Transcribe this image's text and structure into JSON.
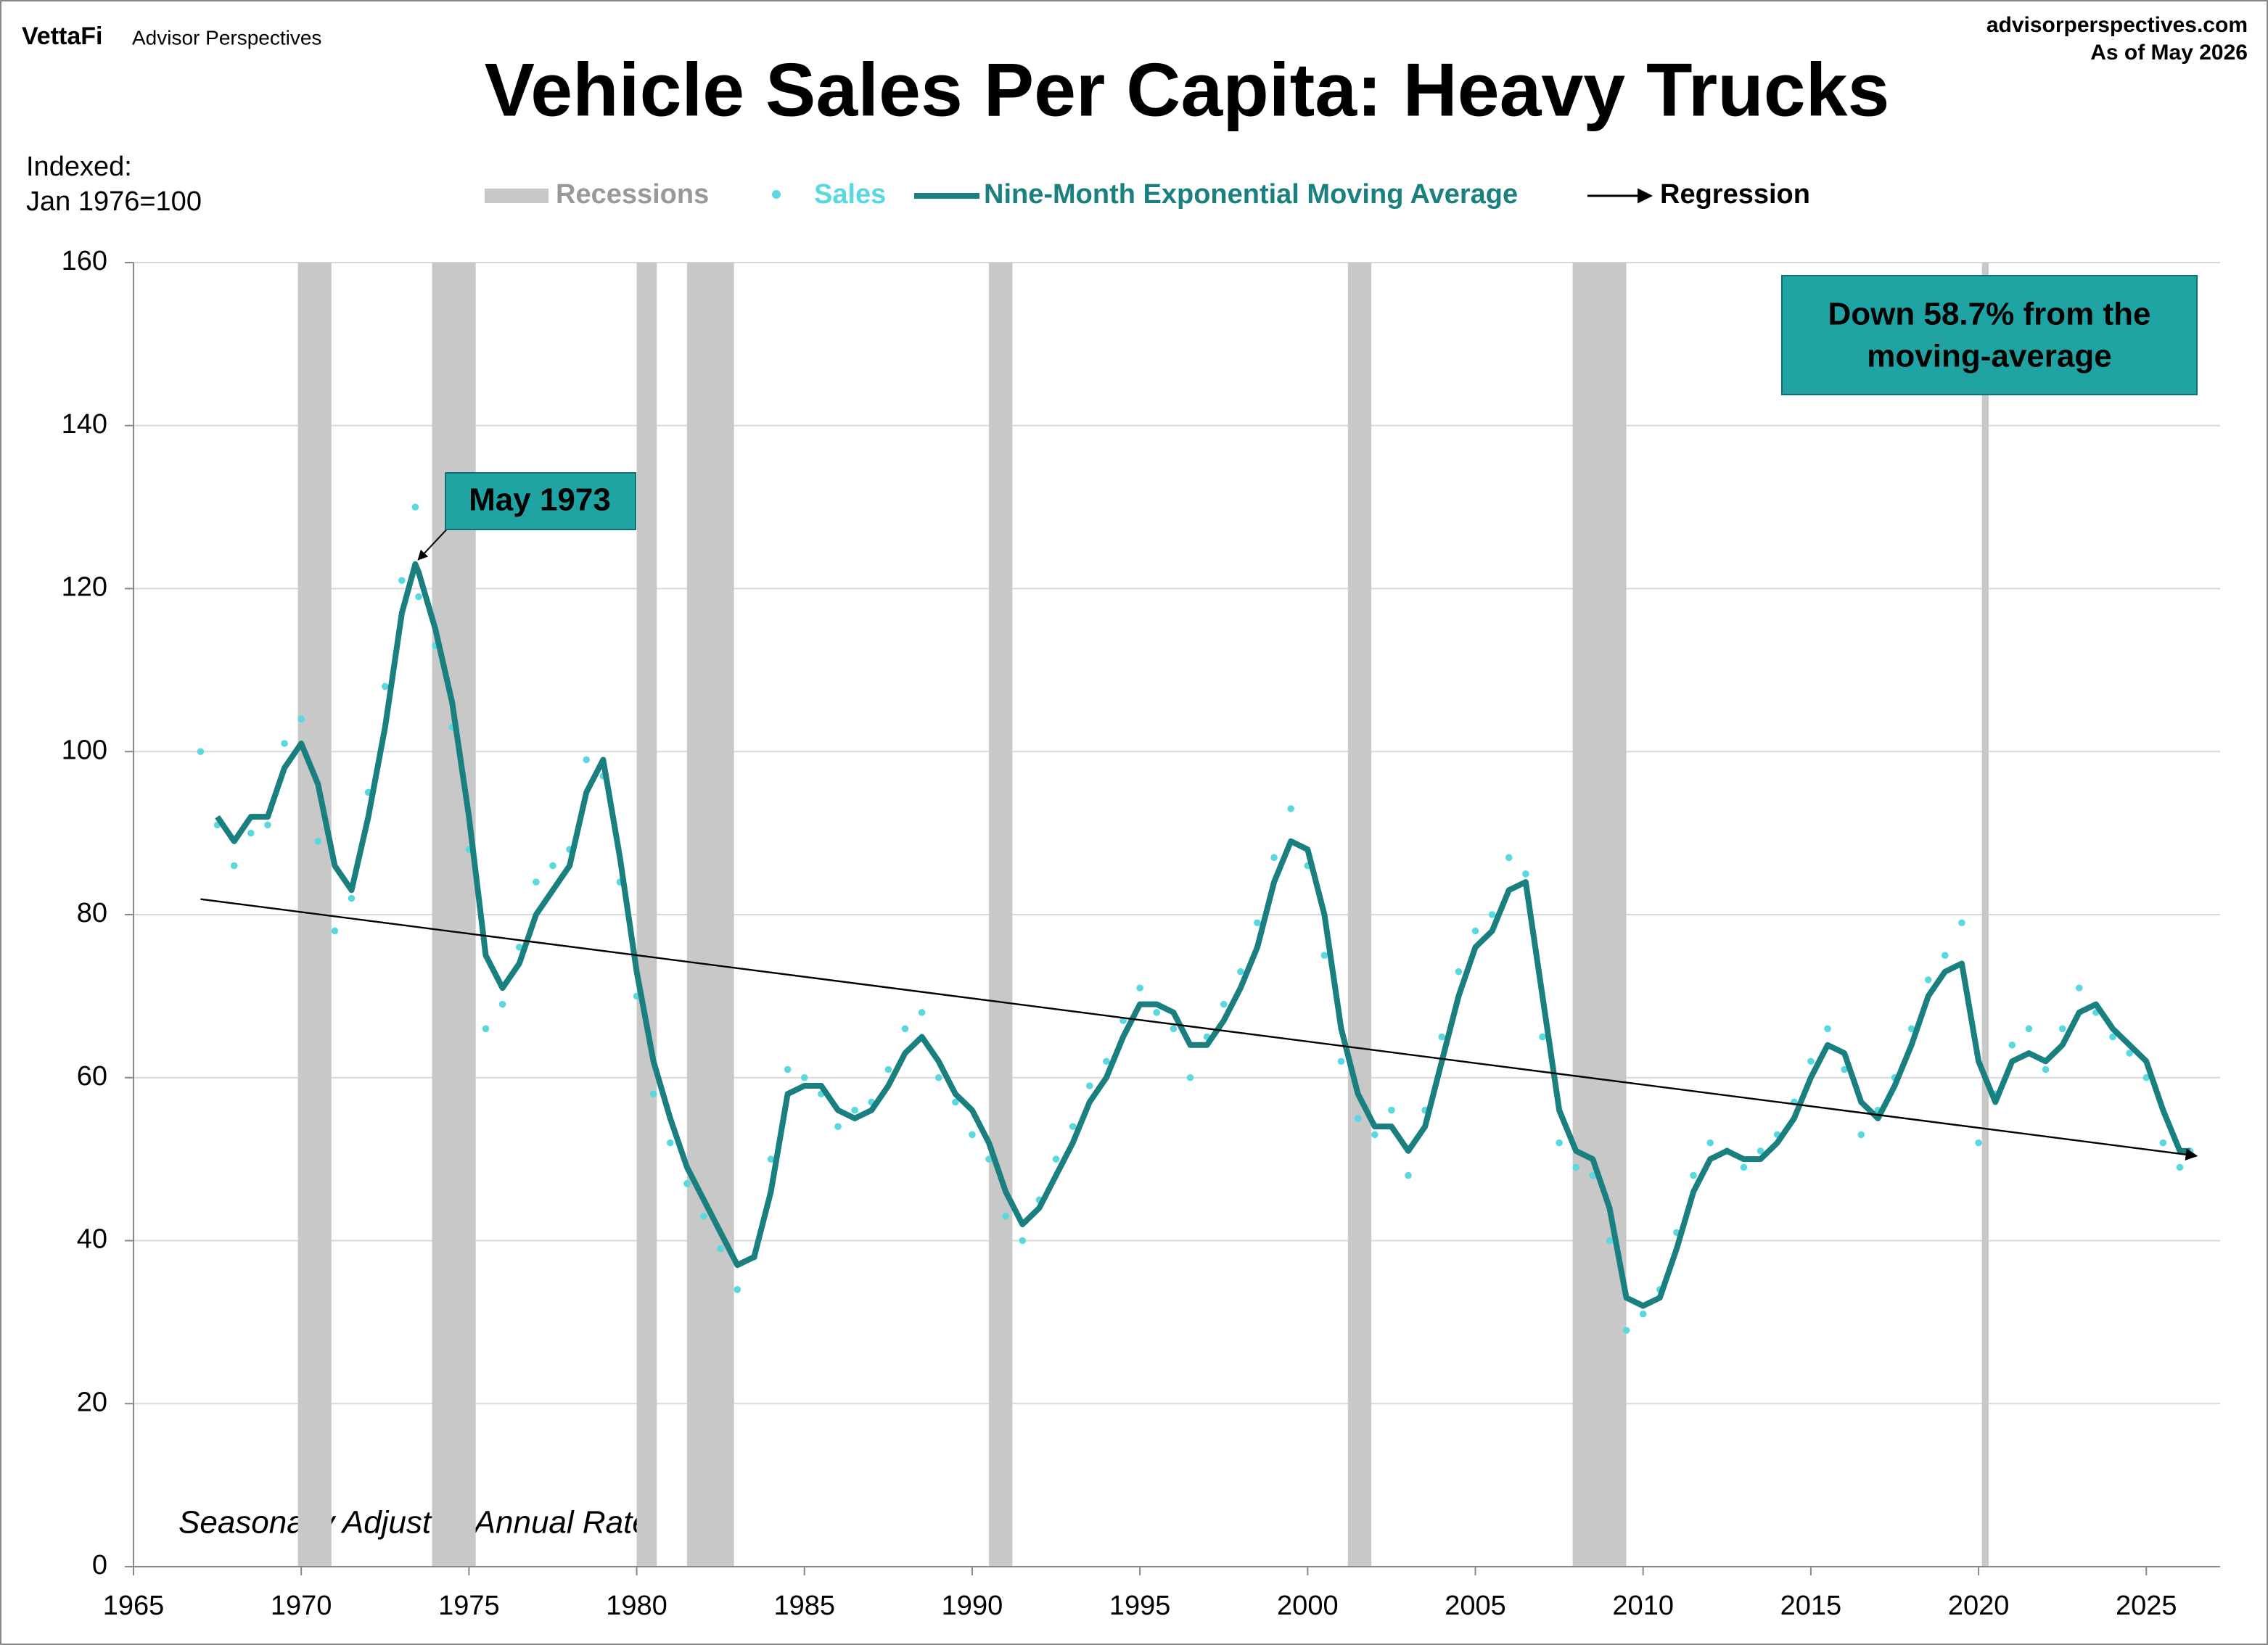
{
  "chart_data": {
    "type": "line",
    "brand": "VettaFi",
    "publisher": "Advisor Perspectives",
    "source": "advisorperspectives.com",
    "date_note": "As of May 2026",
    "title": "Vehicle Sales Per Capita: Heavy Trucks",
    "y_label": [
      "Indexed:",
      "Jan 1976=100"
    ],
    "note": "Seasonally Adjusted Annual Rate",
    "annotation": "May 1973",
    "callout": [
      "Down 58.7% from the",
      "moving-average"
    ],
    "xlim": [
      1965,
      2027.2
    ],
    "xticks": [
      1965,
      1970,
      1975,
      1980,
      1985,
      1990,
      1995,
      2000,
      2005,
      2010,
      2015,
      2020,
      2025
    ],
    "ylim": [
      0,
      160
    ],
    "yticks": [
      0,
      20,
      40,
      60,
      80,
      100,
      120,
      140,
      160
    ],
    "grid": true,
    "recessions": {
      "name": "Recessions",
      "color": "#c8c8c8",
      "periods": [
        [
          1969.9,
          1970.9
        ],
        [
          1973.9,
          1975.2
        ],
        [
          1980.0,
          1980.6
        ],
        [
          1981.5,
          1982.9
        ],
        [
          1990.5,
          1991.2
        ],
        [
          2001.2,
          2001.9
        ],
        [
          2007.9,
          2009.5
        ],
        [
          2020.1,
          2020.3
        ]
      ]
    },
    "x": [
      1967.0,
      1967.5,
      1968.0,
      1968.5,
      1969.0,
      1969.5,
      1970.0,
      1970.5,
      1971.0,
      1971.5,
      1972.0,
      1972.5,
      1973.0,
      1973.4,
      1973.5,
      1974.0,
      1974.5,
      1975.0,
      1975.5,
      1976.0,
      1976.5,
      1977.0,
      1977.5,
      1978.0,
      1978.5,
      1979.0,
      1979.5,
      1980.0,
      1980.5,
      1981.0,
      1981.5,
      1982.0,
      1982.5,
      1983.0,
      1983.5,
      1984.0,
      1984.5,
      1985.0,
      1985.5,
      1986.0,
      1986.5,
      1987.0,
      1987.5,
      1988.0,
      1988.5,
      1989.0,
      1989.5,
      1990.0,
      1990.5,
      1991.0,
      1991.5,
      1992.0,
      1992.5,
      1993.0,
      1993.5,
      1994.0,
      1994.5,
      1995.0,
      1995.5,
      1996.0,
      1996.5,
      1997.0,
      1997.5,
      1998.0,
      1998.5,
      1999.0,
      1999.5,
      2000.0,
      2000.5,
      2001.0,
      2001.5,
      2002.0,
      2002.5,
      2003.0,
      2003.5,
      2004.0,
      2004.5,
      2005.0,
      2005.5,
      2006.0,
      2006.5,
      2007.0,
      2007.5,
      2008.0,
      2008.5,
      2009.0,
      2009.5,
      2010.0,
      2010.5,
      2011.0,
      2011.5,
      2012.0,
      2012.5,
      2013.0,
      2013.5,
      2014.0,
      2014.5,
      2015.0,
      2015.5,
      2016.0,
      2016.5,
      2017.0,
      2017.5,
      2018.0,
      2018.5,
      2019.0,
      2019.5,
      2020.0,
      2020.5,
      2021.0,
      2021.5,
      2022.0,
      2022.5,
      2023.0,
      2023.5,
      2024.0,
      2024.5,
      2025.0,
      2025.5,
      2026.0,
      2026.3
    ],
    "series": [
      {
        "name": "Sales",
        "color": "#5ad8e0",
        "style": "dots",
        "values": [
          100,
          91,
          86,
          90,
          91,
          101,
          104,
          89,
          78,
          82,
          95,
          108,
          121,
          130,
          119,
          113,
          103,
          88,
          66,
          69,
          76,
          84,
          86,
          88,
          99,
          97,
          84,
          70,
          58,
          52,
          47,
          43,
          39,
          34,
          38,
          50,
          61,
          60,
          58,
          54,
          56,
          57,
          61,
          66,
          68,
          60,
          57,
          53,
          50,
          43,
          40,
          45,
          50,
          54,
          59,
          62,
          67,
          71,
          68,
          66,
          60,
          65,
          69,
          73,
          79,
          87,
          93,
          86,
          75,
          62,
          55,
          53,
          56,
          48,
          56,
          65,
          73,
          78,
          80,
          87,
          85,
          65,
          52,
          49,
          48,
          40,
          29,
          31,
          34,
          41,
          48,
          52,
          51,
          49,
          51,
          53,
          57,
          62,
          66,
          61,
          53,
          56,
          60,
          66,
          72,
          75,
          79,
          52,
          58,
          64,
          66,
          61,
          66,
          71,
          68,
          65,
          63,
          60,
          52,
          49,
          51
        ]
      },
      {
        "name": "Nine-Month Exponential Moving Average",
        "color": "#1a7f7f",
        "style": "line",
        "values": [
          null,
          92,
          89,
          92,
          92,
          98,
          101,
          96,
          86,
          83,
          92,
          103,
          117,
          123,
          122,
          115,
          106,
          92,
          75,
          71,
          74,
          80,
          83,
          86,
          95,
          99,
          87,
          73,
          62,
          55,
          49,
          45,
          41,
          37,
          38,
          46,
          58,
          59,
          59,
          56,
          55,
          56,
          59,
          63,
          65,
          62,
          58,
          56,
          52,
          46,
          42,
          44,
          48,
          52,
          57,
          60,
          65,
          69,
          69,
          68,
          64,
          64,
          67,
          71,
          76,
          84,
          89,
          88,
          80,
          66,
          58,
          54,
          54,
          51,
          54,
          62,
          70,
          76,
          78,
          83,
          84,
          70,
          56,
          51,
          50,
          44,
          33,
          32,
          33,
          39,
          46,
          50,
          51,
          50,
          50,
          52,
          55,
          60,
          64,
          63,
          57,
          55,
          59,
          64,
          70,
          73,
          74,
          62,
          57,
          62,
          63,
          62,
          64,
          68,
          69,
          66,
          64,
          62,
          56,
          51,
          51
        ]
      }
    ],
    "regression": {
      "name": "Regression",
      "color": "#000000",
      "x": [
        1967.0,
        2026.5
      ],
      "values": [
        81.9,
        50.4
      ]
    }
  }
}
